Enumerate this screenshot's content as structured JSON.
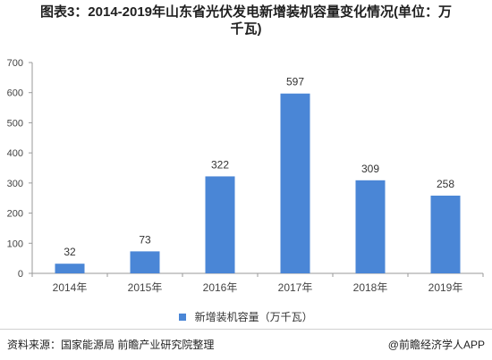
{
  "title": {
    "line1": "图表3：2014-2019年山东省光伏发电新增装机容量变化情况(单位：万",
    "line2": "千瓦)"
  },
  "chart_data": {
    "type": "bar",
    "categories": [
      "2014年",
      "2015年",
      "2016年",
      "2017年",
      "2018年",
      "2019年"
    ],
    "series": [
      {
        "name": "新增装机容量（万千瓦）",
        "values": [
          32,
          73,
          322,
          597,
          309,
          258
        ]
      }
    ],
    "ylim": [
      0,
      700
    ],
    "yticks": [
      0,
      100,
      200,
      300,
      400,
      500,
      600,
      700
    ],
    "grid": false,
    "legend": "bottom",
    "bar_color": "#4a86d6",
    "data_labels": true
  },
  "legend_label": "新增装机容量（万千瓦）",
  "footer": {
    "source": "资料来源：国家能源局 前瞻产业研究院整理",
    "credit": "@前瞻经济学人APP"
  }
}
